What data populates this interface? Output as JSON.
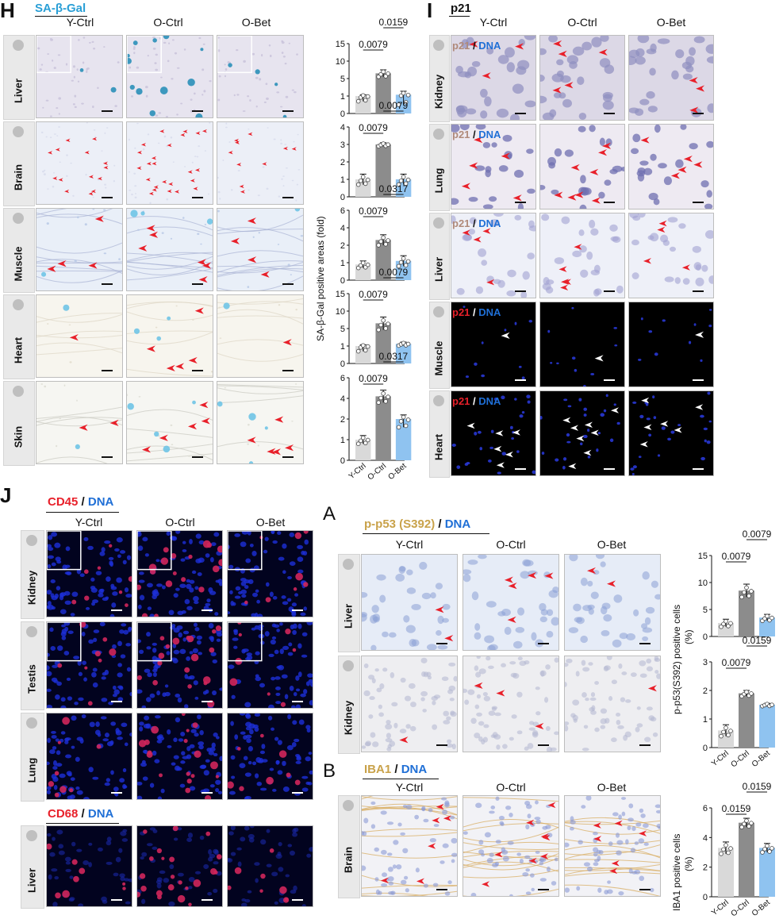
{
  "panel_H": {
    "label": "H",
    "stain": "SA-β-Gal",
    "columns": [
      "Y-Ctrl",
      "O-Ctrl",
      "O-Bet"
    ],
    "rows": [
      "Liver",
      "Brain",
      "Muscle",
      "Heart",
      "Skin"
    ]
  },
  "panel_I": {
    "label": "I",
    "stain": "p21",
    "columns": [
      "Y-Ctrl",
      "O-Ctrl",
      "O-Bet"
    ],
    "rows": [
      "Kidney",
      "Lung",
      "Liver",
      "Muscle",
      "Heart"
    ],
    "marker": "p21",
    "dna": "DNA",
    "sep": "/"
  },
  "panel_J": {
    "label": "J",
    "stain1": "CD45",
    "stain2": "CD68",
    "dna": "DNA",
    "sep": "/",
    "columns": [
      "Y-Ctrl",
      "O-Ctrl",
      "O-Bet"
    ],
    "rows": [
      "Kidney",
      "Testis",
      "Lung",
      "Liver"
    ]
  },
  "panel_A": {
    "label": "A",
    "stain": "p-p53 (S392)",
    "dna": "DNA",
    "sep": "/",
    "columns": [
      "Y-Ctrl",
      "O-Ctrl",
      "O-Bet"
    ],
    "rows": [
      "Liver",
      "Kidney"
    ]
  },
  "panel_B": {
    "label": "B",
    "stain": "IBA1",
    "dna": "DNA",
    "sep": "/",
    "columns": [
      "Y-Ctrl",
      "O-Ctrl",
      "O-Bet"
    ],
    "rows": [
      "Brain"
    ]
  },
  "colors": {
    "y_ctrl": "#d9d9d9",
    "o_ctrl": "#8c8c8c",
    "o_bet": "#8fc3f0",
    "arrow_red": "#e8202a",
    "sa_gal": "#2a9fd6",
    "p21_brown": "#b08a7a",
    "dna_blue": "#1f6fd6",
    "iba1": "#c9a24a"
  },
  "chart_data": [
    {
      "type": "bar",
      "id": "H-liver",
      "categories": [
        "Y-Ctrl",
        "O-Ctrl",
        "O-Bet"
      ],
      "values": [
        1,
        6.5,
        1.3
      ],
      "errors": [
        0.3,
        1.0,
        0.8
      ],
      "yticks": [
        "0",
        "1",
        "5",
        "10",
        "15"
      ],
      "ylim": [
        0,
        16
      ],
      "pvalues": [
        {
          "text": "0.0079",
          "from": 0,
          "to": 1
        },
        {
          "text": "0.0159",
          "from": 1,
          "to": 2
        }
      ]
    },
    {
      "type": "bar",
      "id": "H-brain",
      "categories": [
        "Y-Ctrl",
        "O-Ctrl",
        "O-Bet"
      ],
      "values": [
        1,
        3.0,
        1.0
      ],
      "errors": [
        0.3,
        0.1,
        0.3
      ],
      "yticks": [
        "0",
        "1",
        "2",
        "3",
        "4"
      ],
      "ylim": [
        0,
        4
      ],
      "pvalues": [
        {
          "text": "0.0079",
          "from": 0,
          "to": 1
        },
        {
          "text": "0.0079",
          "from": 1,
          "to": 2
        }
      ]
    },
    {
      "type": "bar",
      "id": "H-muscle",
      "categories": [
        "Y-Ctrl",
        "O-Ctrl",
        "O-Bet"
      ],
      "values": [
        0.9,
        2.6,
        1.1
      ],
      "errors": [
        0.2,
        0.6,
        0.3
      ],
      "yticks": [
        "0",
        "1",
        "2",
        "4",
        "6"
      ],
      "ylim": [
        0,
        6
      ],
      "pvalues": [
        {
          "text": "0.0079",
          "from": 0,
          "to": 1
        },
        {
          "text": "0.0317",
          "from": 1,
          "to": 2
        }
      ]
    },
    {
      "type": "bar",
      "id": "H-heart",
      "categories": [
        "Y-Ctrl",
        "O-Ctrl",
        "O-Bet"
      ],
      "values": [
        1,
        6.5,
        1.5
      ],
      "errors": [
        0.3,
        1.8,
        0.4
      ],
      "yticks": [
        "0",
        "1",
        "5",
        "10",
        "15"
      ],
      "ylim": [
        0,
        16
      ],
      "pvalues": [
        {
          "text": "0.0079",
          "from": 0,
          "to": 1
        },
        {
          "text": "0.0079",
          "from": 1,
          "to": 2
        }
      ]
    },
    {
      "type": "bar",
      "id": "H-skin",
      "categories": [
        "Y-Ctrl",
        "O-Ctrl",
        "O-Bet"
      ],
      "values": [
        1,
        4.2,
        2.0
      ],
      "errors": [
        0.2,
        0.6,
        0.4
      ],
      "yticks": [
        "0",
        "1",
        "2",
        "4",
        "6"
      ],
      "ylim": [
        0,
        6
      ],
      "xlabels": [
        "Y-Ctrl",
        "O-Ctrl",
        "O-Bet"
      ],
      "pvalues": [
        {
          "text": "0.0079",
          "from": 0,
          "to": 1
        },
        {
          "text": "0.0317",
          "from": 1,
          "to": 2
        }
      ]
    },
    {
      "type": "bar",
      "id": "A-liver",
      "categories": [
        "Y-Ctrl",
        "O-Ctrl",
        "O-Bet"
      ],
      "values": [
        2.5,
        8.5,
        3.5
      ],
      "errors": [
        0.7,
        1.2,
        0.6
      ],
      "yticks": [
        "0",
        "5",
        "10",
        "15"
      ],
      "ylim": [
        0,
        15
      ],
      "pvalues": [
        {
          "text": "0.0079",
          "from": 0,
          "to": 1
        },
        {
          "text": "0.0079",
          "from": 1,
          "to": 2
        }
      ]
    },
    {
      "type": "bar",
      "id": "A-kidney",
      "categories": [
        "Y-Ctrl",
        "O-Ctrl",
        "O-Bet"
      ],
      "values": [
        0.6,
        1.9,
        1.5
      ],
      "errors": [
        0.2,
        0.1,
        0.05
      ],
      "yticks": [
        "0",
        "1",
        "2",
        "3"
      ],
      "ylim": [
        0,
        3
      ],
      "xlabels": [
        "Y-Ctrl",
        "O-Ctrl",
        "O-Bet"
      ],
      "pvalues": [
        {
          "text": "0.0079",
          "from": 0,
          "to": 1
        },
        {
          "text": "0.0159",
          "from": 1,
          "to": 2
        }
      ]
    },
    {
      "type": "bar",
      "id": "B-brain",
      "categories": [
        "Y-Ctrl",
        "O-Ctrl",
        "O-Bet"
      ],
      "values": [
        3.3,
        5.0,
        3.3
      ],
      "errors": [
        0.4,
        0.3,
        0.3
      ],
      "yticks": [
        "0",
        "2",
        "4",
        "6"
      ],
      "ylim": [
        0,
        6
      ],
      "xlabels": [
        "Y-Ctrl",
        "O-Ctrl",
        "O-Bet"
      ],
      "pvalues": [
        {
          "text": "0.0159",
          "from": 0,
          "to": 1
        },
        {
          "text": "0.0159",
          "from": 1,
          "to": 2
        }
      ]
    }
  ],
  "axis_labels": {
    "H": "SA-β-Gal positive areas (fold)",
    "A_1": "p-p53(S392) positive cells",
    "A_2": "(%)",
    "B_1": "IBA1 positive cells",
    "B_2": "(%)"
  }
}
